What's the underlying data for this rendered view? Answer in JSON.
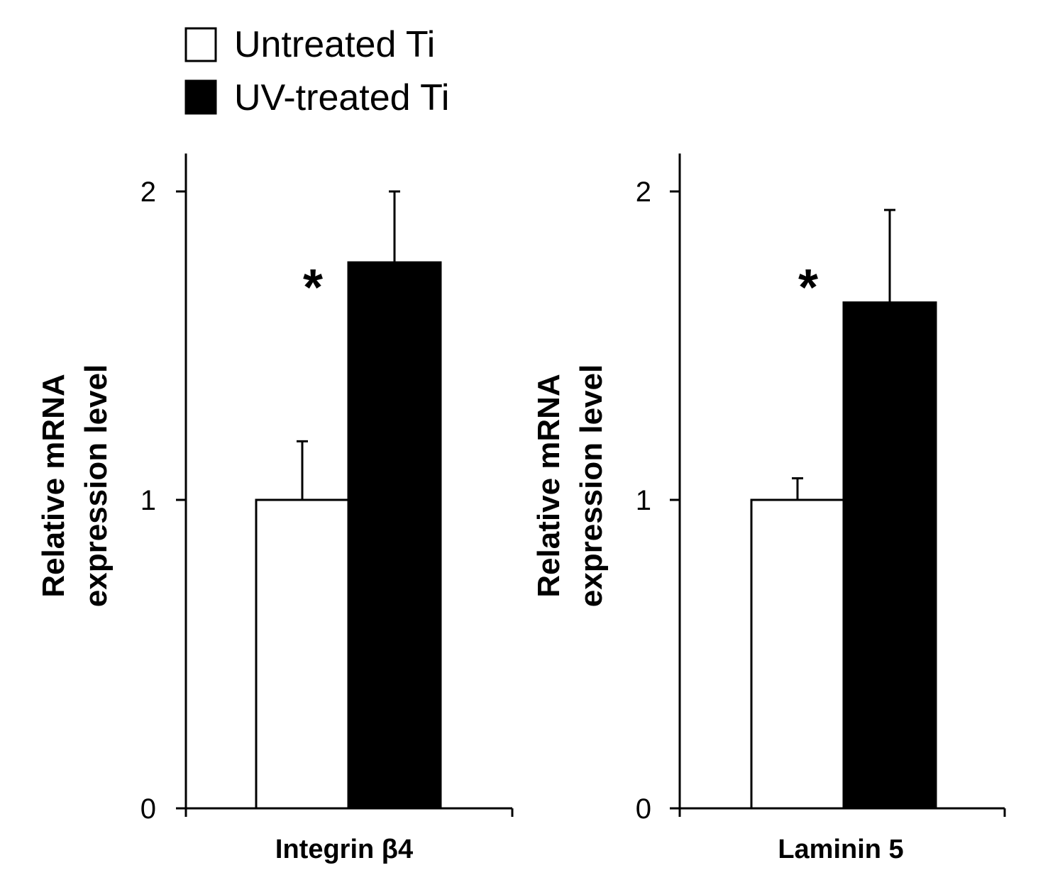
{
  "legend": {
    "items": [
      {
        "label": "Untreated Ti",
        "fill": "#ffffff"
      },
      {
        "label": "UV-treated Ti",
        "fill": "#000000"
      }
    ]
  },
  "chart_data": [
    {
      "type": "bar",
      "categories": [
        "Integrin β4"
      ],
      "series": [
        {
          "name": "Untreated Ti",
          "values": [
            1.0
          ],
          "error": [
            0.19
          ],
          "color": "#ffffff"
        },
        {
          "name": "UV-treated Ti",
          "values": [
            1.77
          ],
          "error": [
            0.23
          ],
          "color": "#000000"
        }
      ],
      "ylabel_lines": [
        "Relative mRNA",
        "expression level"
      ],
      "yticks": [
        0,
        1,
        2
      ],
      "ylim": [
        0,
        2.1
      ],
      "significance": "*"
    },
    {
      "type": "bar",
      "categories": [
        "Laminin 5"
      ],
      "series": [
        {
          "name": "Untreated Ti",
          "values": [
            1.0
          ],
          "error": [
            0.07
          ],
          "color": "#ffffff"
        },
        {
          "name": "UV-treated Ti",
          "values": [
            1.64
          ],
          "error": [
            0.3
          ],
          "color": "#000000"
        }
      ],
      "ylabel_lines": [
        "Relative mRNA",
        "expression level"
      ],
      "yticks": [
        0,
        1,
        2
      ],
      "ylim": [
        0,
        2.1
      ],
      "significance": "*"
    }
  ]
}
